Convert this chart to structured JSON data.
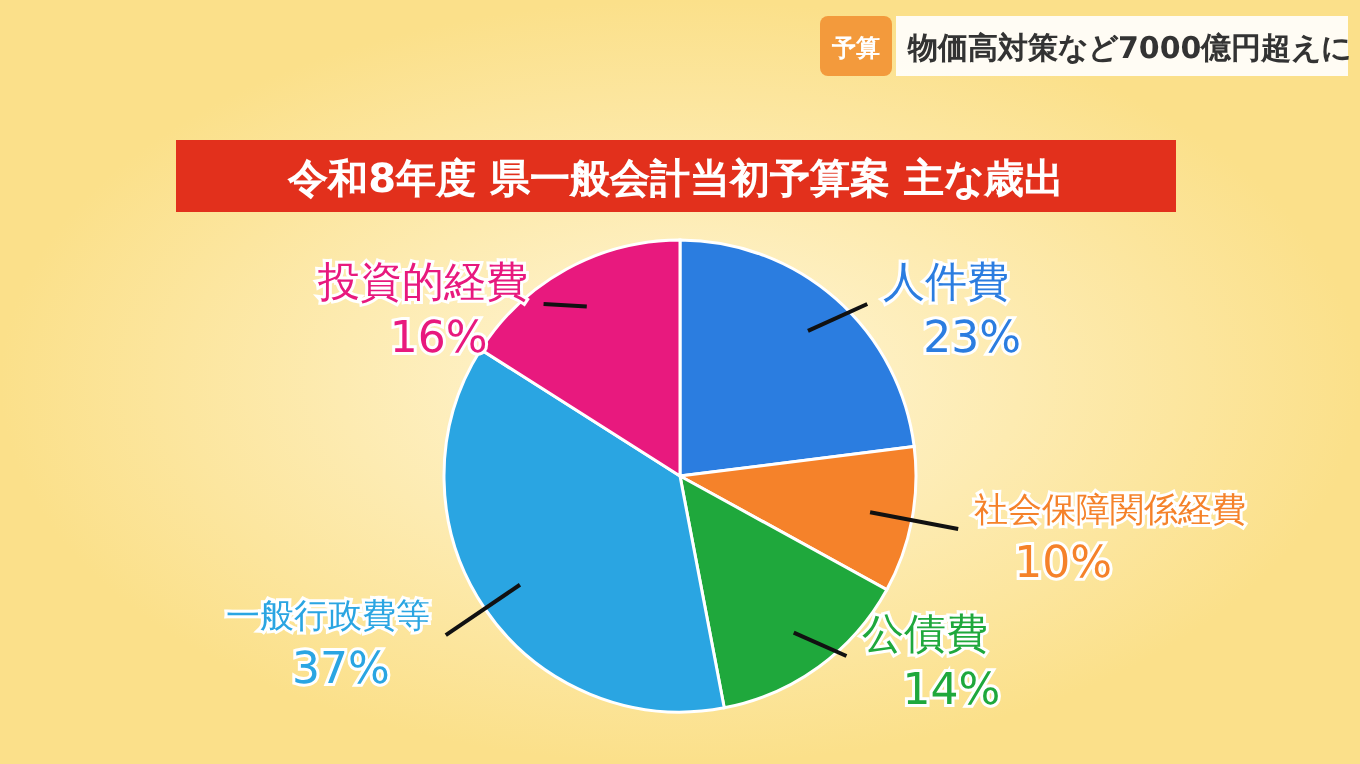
{
  "chart_data": {
    "type": "pie",
    "title": "令和8年度 県一般会計当初予算案 主な歳出",
    "annotations": [
      "予算",
      "物価高対策など7000億円超えに"
    ],
    "categories": [
      "人件費",
      "社会保障関係経費",
      "公債費",
      "一般行政費等",
      "投資的経費"
    ],
    "values": [
      23,
      10,
      14,
      37,
      16
    ],
    "value_labels": [
      "23%",
      "10%",
      "14%",
      "37%",
      "16%"
    ],
    "colors": [
      "#2b7de0",
      "#f5822a",
      "#1fa83c",
      "#2aa5e2",
      "#e8197e"
    ]
  }
}
